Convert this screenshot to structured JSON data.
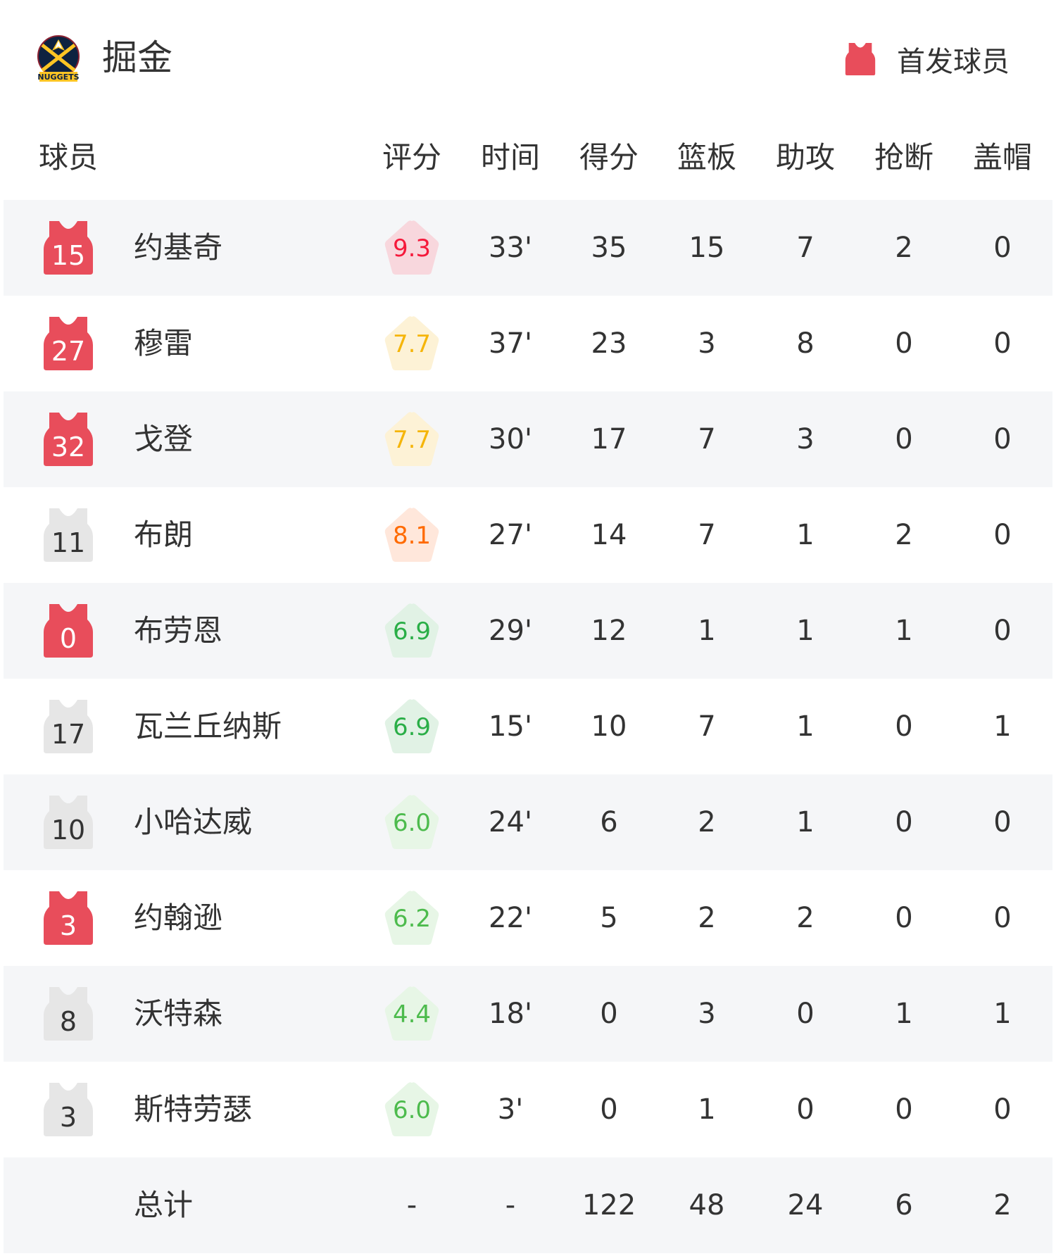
{
  "header": {
    "team": "掘金",
    "logo_text": "NUGGETS",
    "legend_label": "首发球员"
  },
  "colors": {
    "starter": "#e84d5b",
    "bench": "#e6e6e6",
    "row_alt": "#f5f6f8"
  },
  "columns": [
    "球员",
    "评分",
    "时间",
    "得分",
    "篮板",
    "助攻",
    "抢断",
    "盖帽"
  ],
  "players": [
    {
      "num": "15",
      "name": "约基奇",
      "starter": true,
      "rating": "9.3",
      "tier": "red",
      "min": "33'",
      "pts": "35",
      "reb": "15",
      "ast": "7",
      "stl": "2",
      "blk": "0"
    },
    {
      "num": "27",
      "name": "穆雷",
      "starter": true,
      "rating": "7.7",
      "tier": "yellow",
      "min": "37'",
      "pts": "23",
      "reb": "3",
      "ast": "8",
      "stl": "0",
      "blk": "0"
    },
    {
      "num": "32",
      "name": "戈登",
      "starter": true,
      "rating": "7.7",
      "tier": "yellow",
      "min": "30'",
      "pts": "17",
      "reb": "7",
      "ast": "3",
      "stl": "0",
      "blk": "0"
    },
    {
      "num": "11",
      "name": "布朗",
      "starter": false,
      "rating": "8.1",
      "tier": "orange",
      "min": "27'",
      "pts": "14",
      "reb": "7",
      "ast": "1",
      "stl": "2",
      "blk": "0"
    },
    {
      "num": "0",
      "name": "布劳恩",
      "starter": true,
      "rating": "6.9",
      "tier": "green",
      "min": "29'",
      "pts": "12",
      "reb": "1",
      "ast": "1",
      "stl": "1",
      "blk": "0"
    },
    {
      "num": "17",
      "name": "瓦兰丘纳斯",
      "starter": false,
      "rating": "6.9",
      "tier": "green",
      "min": "15'",
      "pts": "10",
      "reb": "7",
      "ast": "1",
      "stl": "0",
      "blk": "1"
    },
    {
      "num": "10",
      "name": "小哈达威",
      "starter": false,
      "rating": "6.0",
      "tier": "lightgreen",
      "min": "24'",
      "pts": "6",
      "reb": "2",
      "ast": "1",
      "stl": "0",
      "blk": "0"
    },
    {
      "num": "3",
      "name": "约翰逊",
      "starter": true,
      "rating": "6.2",
      "tier": "lightgreen",
      "min": "22'",
      "pts": "5",
      "reb": "2",
      "ast": "2",
      "stl": "0",
      "blk": "0"
    },
    {
      "num": "8",
      "name": "沃特森",
      "starter": false,
      "rating": "4.4",
      "tier": "lightgreen",
      "min": "18'",
      "pts": "0",
      "reb": "3",
      "ast": "0",
      "stl": "1",
      "blk": "1"
    },
    {
      "num": "3",
      "name": "斯特劳瑟",
      "starter": false,
      "rating": "6.0",
      "tier": "lightgreen",
      "min": "3'",
      "pts": "0",
      "reb": "1",
      "ast": "0",
      "stl": "0",
      "blk": "0"
    }
  ],
  "total": {
    "name": "总计",
    "rating": "-",
    "min": "-",
    "pts": "122",
    "reb": "48",
    "ast": "24",
    "stl": "6",
    "blk": "2"
  },
  "rating_tiers": {
    "red": {
      "text": "#f5193b",
      "bg": "#f8d7dd"
    },
    "yellow": {
      "text": "#f5b50a",
      "bg": "#fdf2d6"
    },
    "orange": {
      "text": "#ff6a00",
      "bg": "#ffe7db"
    },
    "green": {
      "text": "#2aae47",
      "bg": "#e1f2e5"
    },
    "lightgreen": {
      "text": "#4dbb4d",
      "bg": "#e7f6e6"
    }
  }
}
